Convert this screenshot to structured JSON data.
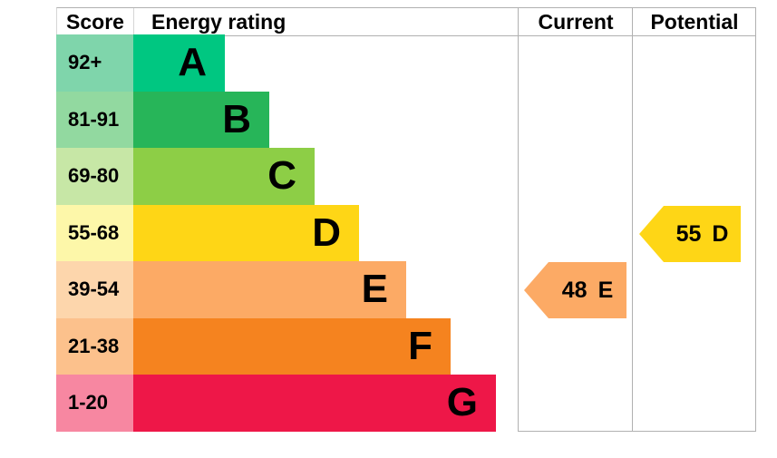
{
  "chart_data": {
    "type": "epc-energy-rating",
    "columns": {
      "score": "Score",
      "energy_rating": "Energy rating",
      "current": "Current",
      "potential": "Potential"
    },
    "bands": [
      {
        "score": "92+",
        "letter": "A",
        "color": "#00c781",
        "tint": "#7fd5ab"
      },
      {
        "score": "81-91",
        "letter": "B",
        "color": "#27b559",
        "tint": "#92d9a0"
      },
      {
        "score": "69-80",
        "letter": "C",
        "color": "#8dce46",
        "tint": "#c7e7a6"
      },
      {
        "score": "55-68",
        "letter": "D",
        "color": "#fed616",
        "tint": "#fdf7a9"
      },
      {
        "score": "39-54",
        "letter": "E",
        "color": "#fcaa65",
        "tint": "#fdd6ac"
      },
      {
        "score": "21-38",
        "letter": "F",
        "color": "#f5831f",
        "tint": "#fcc18c"
      },
      {
        "score": "1-20",
        "letter": "G",
        "color": "#ee1748",
        "tint": "#f787a1"
      }
    ],
    "current": {
      "value": "48",
      "letter": "E",
      "band_color": "#fcaa65"
    },
    "potential": {
      "value": "55",
      "letter": "D",
      "band_color": "#fed616"
    }
  }
}
